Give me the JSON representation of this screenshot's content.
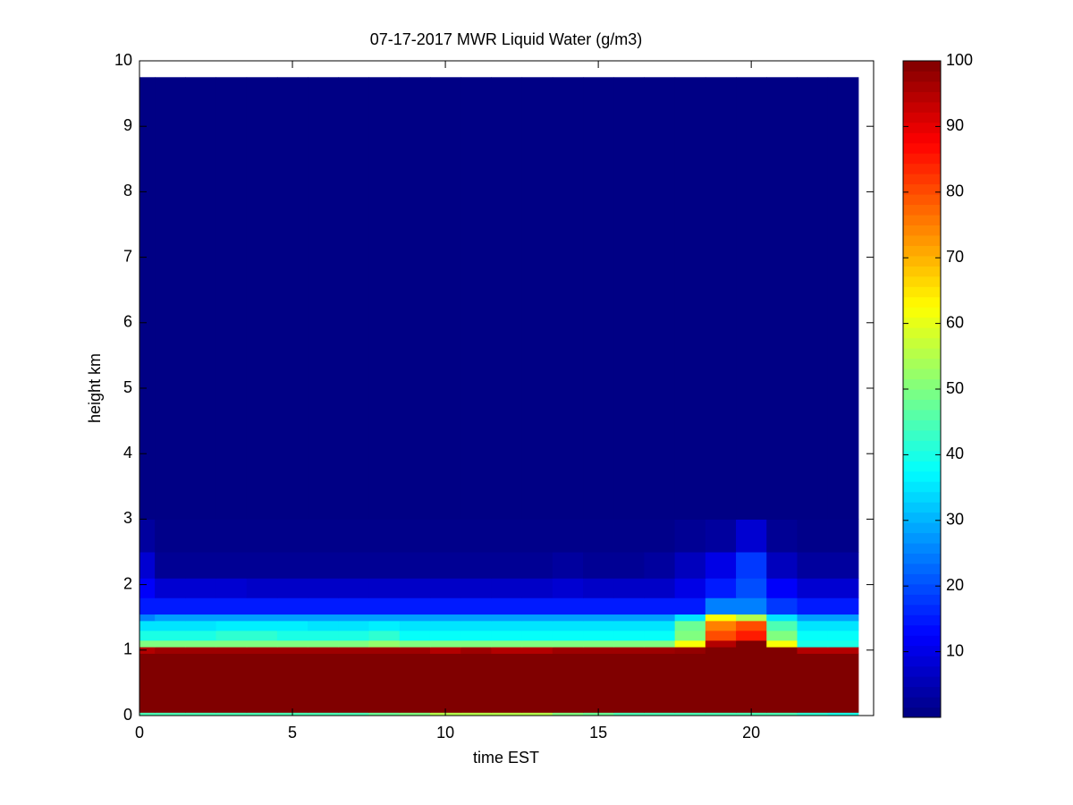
{
  "chart_data": {
    "type": "heatmap",
    "title": "07-17-2017 MWR Liquid Water (g/m3)",
    "x_label": "time EST",
    "y_label": "height km",
    "colormap": "jet",
    "x_edges": [
      0,
      0.5,
      1.5,
      2.5,
      3.5,
      4.5,
      5.5,
      6.5,
      7.5,
      8.5,
      9.5,
      10.5,
      11.5,
      12.5,
      13.5,
      14.5,
      15.5,
      16.5,
      17.5,
      18.5,
      19.5,
      20.5,
      21.5,
      22.5,
      23.5
    ],
    "y_edges": [
      0,
      0.05,
      0.95,
      1.05,
      1.15,
      1.3,
      1.45,
      1.55,
      1.8,
      2.1,
      2.5,
      3.0,
      9.75
    ],
    "values": [
      [
        45,
        45,
        45,
        45,
        45,
        45,
        45,
        45,
        48,
        50,
        55,
        55,
        55,
        55,
        50,
        48,
        45,
        45,
        45,
        45,
        45,
        45,
        42,
        40
      ],
      [
        100,
        100,
        100,
        100,
        100,
        100,
        100,
        100,
        100,
        100,
        100,
        100,
        100,
        100,
        100,
        100,
        100,
        100,
        100,
        100,
        100,
        100,
        100,
        100
      ],
      [
        95,
        97,
        97,
        97,
        97,
        97,
        97,
        97,
        97,
        97,
        95,
        97,
        95,
        95,
        97,
        97,
        97,
        97,
        98,
        100,
        100,
        100,
        95,
        95
      ],
      [
        50,
        50,
        50,
        50,
        50,
        50,
        50,
        50,
        52,
        50,
        50,
        50,
        50,
        50,
        50,
        50,
        50,
        50,
        62,
        95,
        100,
        62,
        40,
        40
      ],
      [
        40,
        40,
        40,
        42,
        42,
        40,
        40,
        40,
        42,
        38,
        38,
        38,
        38,
        38,
        38,
        38,
        38,
        38,
        50,
        80,
        85,
        50,
        38,
        38
      ],
      [
        35,
        35,
        35,
        36,
        36,
        36,
        35,
        35,
        36,
        35,
        35,
        35,
        35,
        35,
        35,
        35,
        35,
        35,
        48,
        75,
        80,
        45,
        35,
        35
      ],
      [
        25,
        28,
        28,
        28,
        28,
        28,
        28,
        28,
        28,
        28,
        28,
        28,
        28,
        28,
        28,
        28,
        28,
        28,
        35,
        62,
        55,
        35,
        28,
        28
      ],
      [
        15,
        15,
        15,
        15,
        15,
        15,
        15,
        15,
        15,
        15,
        15,
        15,
        15,
        15,
        15,
        15,
        15,
        15,
        15,
        25,
        25,
        18,
        15,
        15
      ],
      [
        12,
        8,
        8,
        8,
        7,
        7,
        7,
        7,
        7,
        7,
        7,
        7,
        7,
        7,
        8,
        7,
        7,
        7,
        10,
        15,
        20,
        12,
        8,
        8
      ],
      [
        8,
        2,
        2,
        2,
        2,
        2,
        2,
        2,
        2,
        2,
        2,
        2,
        2,
        2,
        3,
        2,
        2,
        3,
        6,
        10,
        18,
        6,
        3,
        3
      ],
      [
        3,
        1,
        1,
        1,
        1,
        1,
        1,
        1,
        1,
        1,
        1,
        1,
        1,
        1,
        1,
        1,
        1,
        1,
        2,
        3,
        8,
        2,
        1,
        1
      ],
      [
        0.5,
        0.5,
        0.5,
        0.5,
        0.5,
        0.5,
        0.5,
        0.5,
        0.5,
        0.5,
        0.5,
        0.5,
        0.5,
        0.5,
        0.5,
        0.5,
        0.5,
        0.5,
        0.5,
        0.5,
        0.5,
        0.5,
        0.5,
        0.5
      ]
    ],
    "xlim": [
      0,
      24
    ],
    "xticks": [
      0,
      5,
      10,
      15,
      20
    ],
    "ylim": [
      0,
      10
    ],
    "yticks": [
      0,
      1,
      2,
      3,
      4,
      5,
      6,
      7,
      8,
      9,
      10
    ],
    "clim": [
      0,
      100
    ],
    "cticks": [
      10,
      20,
      30,
      40,
      50,
      60,
      70,
      80,
      90,
      100
    ]
  }
}
